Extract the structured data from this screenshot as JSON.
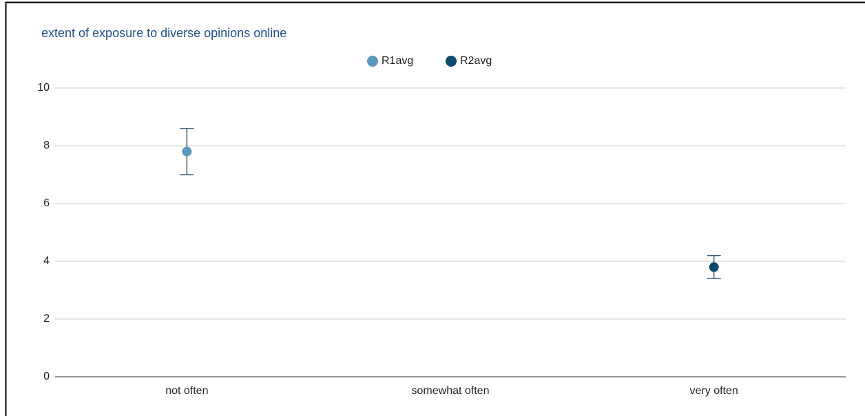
{
  "chart_data": {
    "type": "scatter",
    "title": "extent of exposure to diverse opinions online",
    "categories": [
      "not often",
      "somewhat often",
      "very often"
    ],
    "series": [
      {
        "name": "R1avg",
        "color": "#5b97b8",
        "values": [
          7.8,
          null,
          null
        ],
        "errors": [
          0.8,
          null,
          null
        ]
      },
      {
        "name": "R2avg",
        "color": "#0b4a6b",
        "values": [
          null,
          null,
          3.8
        ],
        "errors": [
          null,
          null,
          0.4
        ]
      }
    ],
    "ylim": [
      0,
      10
    ],
    "yticks": [
      0,
      2,
      4,
      6,
      8,
      10
    ],
    "grid": true,
    "legend": "top"
  }
}
